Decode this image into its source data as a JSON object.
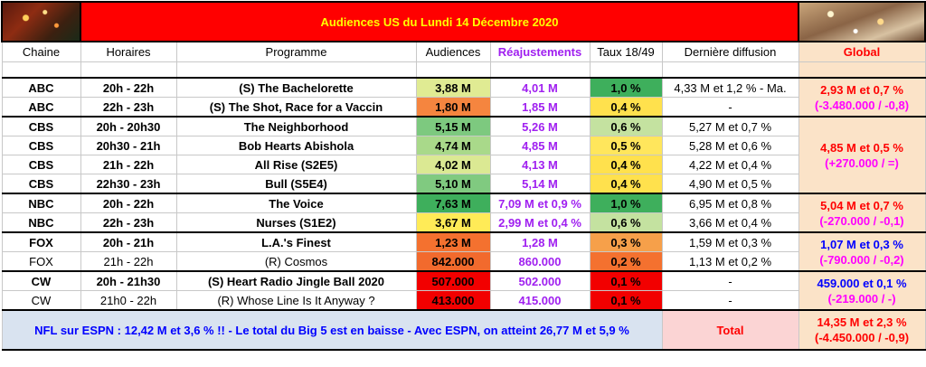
{
  "title": "Audiences US du Lundi 14 Décembre 2020",
  "headers": {
    "chaine": "Chaine",
    "horaires": "Horaires",
    "programme": "Programme",
    "audiences": "Audiences",
    "reajustements": "Réajustements",
    "taux": "Taux 18/49",
    "derniere": "Dernière diffusion",
    "global": "Global"
  },
  "colors": {
    "title_bg": "#ff0000",
    "title_fg": "#ffff00",
    "reajust": "#a020f0",
    "global_bg": "#fbe3c8",
    "footer_bg": "#d9e3f0",
    "total_bg": "#fbd4d4"
  },
  "rows": [
    {
      "chaine": "ABC",
      "horaires": "20h - 22h",
      "programme": "(S) The Bachelorette",
      "audiences": "3,88 M",
      "aud_color": "#e0eb93",
      "reajust": "4,01 M",
      "taux": "1,0 %",
      "taux_color": "#3eaf5c",
      "derniere": "4,33 M et 1,2 % - Ma.",
      "bold": true
    },
    {
      "chaine": "ABC",
      "horaires": "22h - 23h",
      "programme": "(S) The Shot, Race for a Vaccin",
      "audiences": "1,80 M",
      "aud_color": "#f5853f",
      "reajust": "1,85 M",
      "taux": "0,4 %",
      "taux_color": "#ffe14d",
      "derniere": "-",
      "bold": true
    },
    {
      "chaine": "CBS",
      "horaires": "20h - 20h30",
      "programme": "The Neighborhood",
      "audiences": "5,15 M",
      "aud_color": "#7dc97f",
      "reajust": "5,26 M",
      "taux": "0,6 %",
      "taux_color": "#c4e2a0",
      "derniere": "5,27 M et 0,7 %",
      "bold": true
    },
    {
      "chaine": "CBS",
      "horaires": "20h30 - 21h",
      "programme": "Bob Hearts Abishola",
      "audiences": "4,74 M",
      "aud_color": "#a9d98a",
      "reajust": "4,85 M",
      "taux": "0,5 %",
      "taux_color": "#ffe65c",
      "derniere": "5,28 M et 0,6 %",
      "bold": true
    },
    {
      "chaine": "CBS",
      "horaires": "21h - 22h",
      "programme": "All Rise (S2E5)",
      "audiences": "4,02 M",
      "aud_color": "#dbe993",
      "reajust": "4,13 M",
      "taux": "0,4 %",
      "taux_color": "#ffe14d",
      "derniere": "4,22 M et 0,4 %",
      "bold": true
    },
    {
      "chaine": "CBS",
      "horaires": "22h30 - 23h",
      "programme": "Bull (S5E4)",
      "audiences": "5,10 M",
      "aud_color": "#80ca80",
      "reajust": "5,14 M",
      "taux": "0,4 %",
      "taux_color": "#ffe14d",
      "derniere": "4,90 M et 0,5 %",
      "bold": true
    },
    {
      "chaine": "NBC",
      "horaires": "20h - 22h",
      "programme": "The Voice",
      "audiences": "7,63 M",
      "aud_color": "#3eaf5c",
      "reajust": "7,09 M et 0,9 %",
      "taux": "1,0 %",
      "taux_color": "#3eaf5c",
      "derniere": "6,95 M et 0,8 %",
      "bold": true
    },
    {
      "chaine": "NBC",
      "horaires": "22h - 23h",
      "programme": "Nurses (S1E2)",
      "audiences": "3,67 M",
      "aud_color": "#ffeb57",
      "reajust": "2,99 M et 0,4 %",
      "taux": "0,6 %",
      "taux_color": "#c4e2a0",
      "derniere": "3,66 M et 0,4 %",
      "bold": true
    },
    {
      "chaine": "FOX",
      "horaires": "20h - 21h",
      "programme": "L.A.'s Finest",
      "audiences": "1,23 M",
      "aud_color": "#f4712f",
      "reajust": "1,28 M",
      "taux": "0,3 %",
      "taux_color": "#f6a04a",
      "derniere": "1,59 M et 0,3 %",
      "bold": true
    },
    {
      "chaine": "FOX",
      "horaires": "21h - 22h",
      "programme": "(R) Cosmos",
      "audiences": "842.000",
      "aud_color": "#f26a2d",
      "reajust": "860.000",
      "taux": "0,2 %",
      "taux_color": "#f4712f",
      "derniere": "1,13 M et 0,2 %",
      "bold": false
    },
    {
      "chaine": "CW",
      "horaires": "20h - 21h30",
      "programme": "(S) Heart Radio Jingle Ball 2020",
      "audiences": "507.000",
      "aud_color": "#f20000",
      "reajust": "502.000",
      "taux": "0,1 %",
      "taux_color": "#f20000",
      "derniere": "-",
      "bold": true
    },
    {
      "chaine": "CW",
      "horaires": "21h0 - 22h",
      "programme": "(R) Whose Line Is It Anyway ?",
      "audiences": "413.000",
      "aud_color": "#f20000",
      "reajust": "415.000",
      "taux": "0,1 %",
      "taux_color": "#f20000",
      "derniere": "-",
      "bold": false
    }
  ],
  "globals": [
    {
      "line1": "2,93 M et 0,7 %",
      "line2": "(-3.480.000 / -0,8)",
      "color1": "#ff0000",
      "color2": "#ff00ff"
    },
    {
      "line1": "4,85 M et 0,5 %",
      "line2": "(+270.000 / =)",
      "color1": "#ff0000",
      "color2": "#ff00ff"
    },
    {
      "line1": "5,04 M et 0,7 %",
      "line2": "(-270.000 / -0,1)",
      "color1": "#ff0000",
      "color2": "#ff00ff"
    },
    {
      "line1": "1,07 M et 0,3 %",
      "line2": "(-790.000 / -0,2)",
      "color1": "#0000ff",
      "color2": "#ff00ff"
    },
    {
      "line1": "459.000 et 0,1 %",
      "line2": "(-219.000 / -)",
      "color1": "#0000ff",
      "color2": "#ff00ff"
    }
  ],
  "footer": {
    "message": "NFL sur ESPN : 12,42 M et 3,6 % !! - Le total du Big 5 est en baisse - Avec ESPN, on atteint 26,77 M et 5,9 %",
    "total_label": "Total",
    "total_line1": "14,35 M et 2,3 %",
    "total_line2": "(-4.450.000 / -0,9)"
  }
}
